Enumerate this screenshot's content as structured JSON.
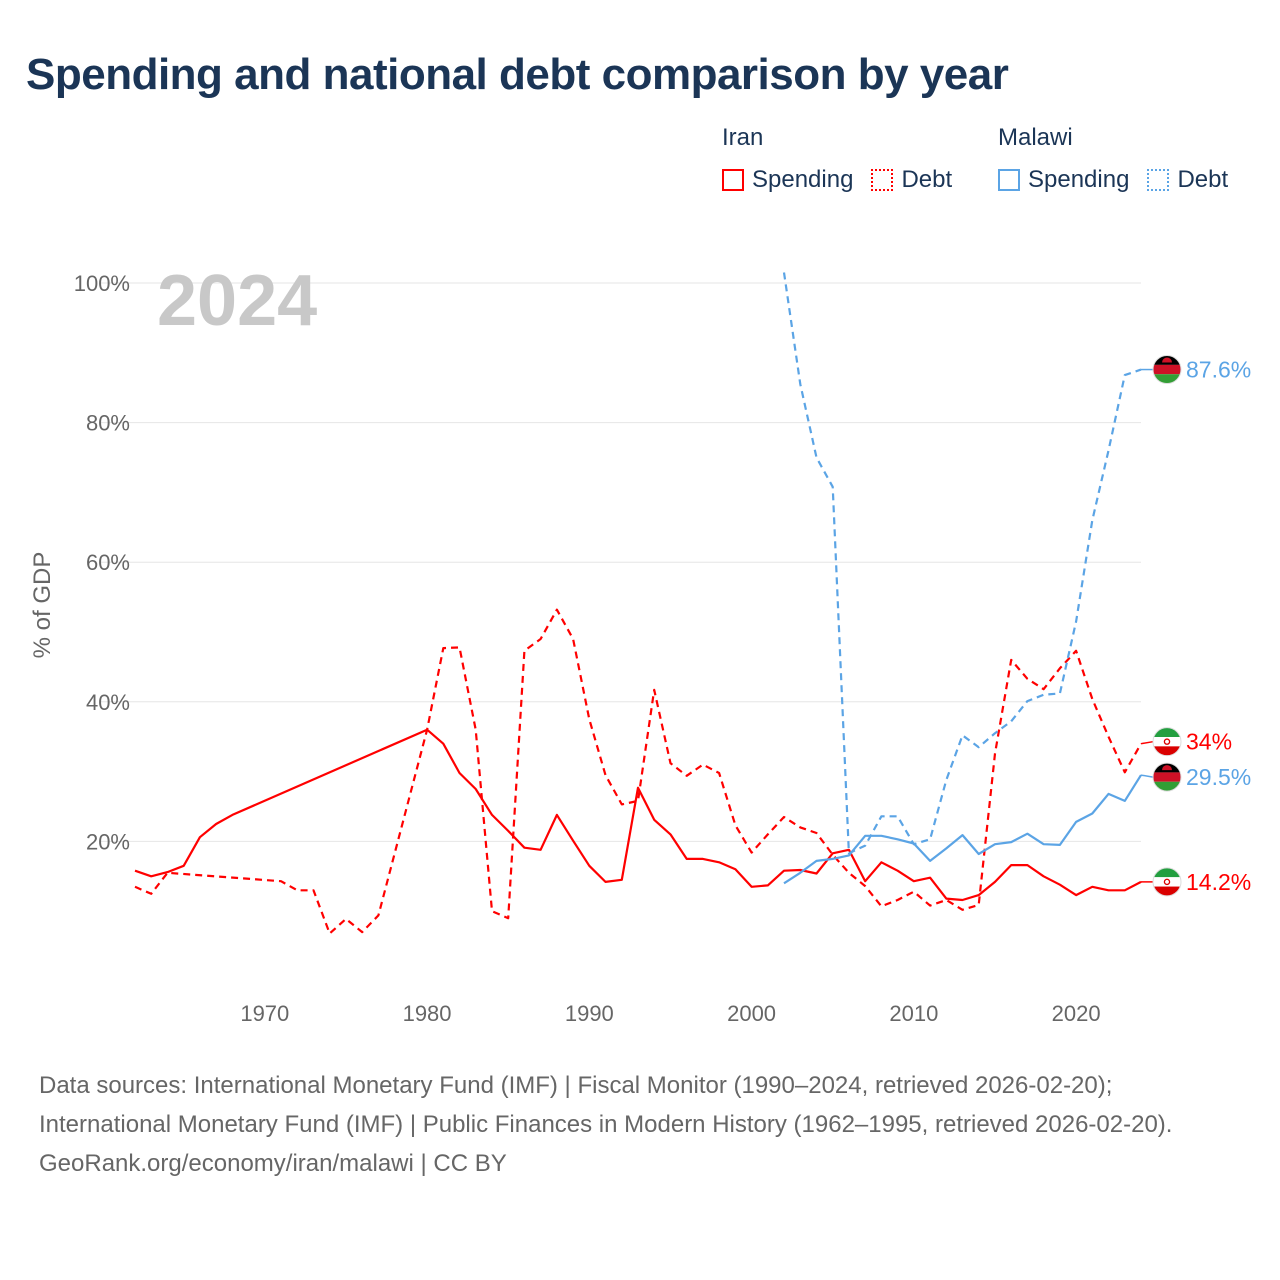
{
  "title": "Spending and national debt comparison by year",
  "colors": {
    "iran": "#ff0000",
    "malawi": "#5ba4e5",
    "title": "#1b3556",
    "grid": "#e6e6e6",
    "year_watermark": "#c8c8c8",
    "axis_text": "#666666"
  },
  "legend": [
    {
      "country": "Iran",
      "items": [
        {
          "label": "Spending",
          "style": "solid"
        },
        {
          "label": "Debt",
          "style": "dotted"
        }
      ]
    },
    {
      "country": "Malawi",
      "items": [
        {
          "label": "Spending",
          "style": "solid"
        },
        {
          "label": "Debt",
          "style": "dotted"
        }
      ]
    }
  ],
  "chart_data": {
    "type": "line",
    "ylabel": "% of GDP",
    "xlim": [
      1962,
      2024
    ],
    "ylim": [
      0,
      100
    ],
    "y_ticks": [
      20,
      40,
      60,
      80,
      100
    ],
    "y_tick_labels": [
      "20%",
      "40%",
      "60%",
      "80%",
      "100%"
    ],
    "x_ticks": [
      1970,
      1980,
      1990,
      2000,
      2010,
      2020
    ],
    "x_tick_labels": [
      "1970",
      "1980",
      "1990",
      "2000",
      "2010",
      "2020"
    ],
    "year_label": "2024",
    "series": [
      {
        "name": "Iran Spending",
        "country": "Iran",
        "measure": "Spending",
        "dash": "solid",
        "color": "#ff0000",
        "end_label": "14.2%",
        "x": [
          1962,
          1963,
          1964,
          1965,
          1966,
          1967,
          1968,
          1980,
          1981,
          1982,
          1983,
          1984,
          1985,
          1986,
          1987,
          1988,
          1989,
          1990,
          1991,
          1992,
          1993,
          1994,
          1995,
          1996,
          1997,
          1998,
          1999,
          2000,
          2001,
          2002,
          2003,
          2004,
          2005,
          2006,
          2007,
          2008,
          2009,
          2010,
          2011,
          2012,
          2013,
          2014,
          2015,
          2016,
          2017,
          2018,
          2019,
          2020,
          2021,
          2022,
          2023,
          2024
        ],
        "y": [
          15.8,
          15.0,
          15.6,
          16.5,
          20.6,
          22.5,
          23.8,
          36.0,
          34.0,
          29.8,
          27.5,
          23.8,
          21.5,
          19.1,
          18.8,
          23.8,
          20.1,
          16.5,
          14.2,
          14.5,
          27.7,
          23.1,
          21.0,
          17.5,
          17.5,
          17.0,
          16.0,
          13.5,
          13.7,
          15.8,
          15.9,
          15.4,
          18.3,
          18.8,
          14.3,
          17.0,
          15.8,
          14.3,
          14.8,
          11.8,
          11.6,
          12.3,
          14.2,
          16.6,
          16.6,
          15.0,
          13.8,
          12.3,
          13.5,
          13.0,
          13.0,
          14.2
        ]
      },
      {
        "name": "Iran Debt",
        "country": "Iran",
        "measure": "Debt",
        "dash": "dashed",
        "color": "#ff0000",
        "end_label": "34%",
        "x": [
          1962,
          1963,
          1964,
          1971,
          1972,
          1973,
          1974,
          1975,
          1976,
          1977,
          1980,
          1981,
          1982,
          1983,
          1984,
          1985,
          1986,
          1987,
          1988,
          1989,
          1990,
          1991,
          1992,
          1993,
          1994,
          1995,
          1996,
          1997,
          1998,
          1999,
          2000,
          2001,
          2002,
          2003,
          2004,
          2005,
          2006,
          2007,
          2008,
          2009,
          2010,
          2011,
          2012,
          2013,
          2014,
          2015,
          2016,
          2017,
          2018,
          2019,
          2020,
          2021,
          2022,
          2023,
          2024
        ],
        "y": [
          13.5,
          12.5,
          15.5,
          14.3,
          13.0,
          13.0,
          6.8,
          8.9,
          7.0,
          9.4,
          36.0,
          47.7,
          47.8,
          36.0,
          10.0,
          9.0,
          47.3,
          49.0,
          53.2,
          49.0,
          37.5,
          29.5,
          25.3,
          25.8,
          41.7,
          31.2,
          29.4,
          31.0,
          29.8,
          22.3,
          18.4,
          21.0,
          23.5,
          22.0,
          21.2,
          18.1,
          15.5,
          13.6,
          10.7,
          11.6,
          12.8,
          10.8,
          11.6,
          10.2,
          10.9,
          32.6,
          46.0,
          43.3,
          41.8,
          44.8,
          47.3,
          40.4,
          35.0,
          29.9,
          34.0
        ]
      },
      {
        "name": "Malawi Spending",
        "country": "Malawi",
        "measure": "Spending",
        "dash": "solid",
        "color": "#5ba4e5",
        "end_label": "29.5%",
        "x": [
          2002,
          2003,
          2004,
          2005,
          2006,
          2007,
          2008,
          2009,
          2010,
          2011,
          2012,
          2013,
          2014,
          2015,
          2016,
          2017,
          2018,
          2019,
          2020,
          2021,
          2022,
          2023,
          2024
        ],
        "y": [
          14.0,
          15.5,
          17.2,
          17.5,
          18.0,
          20.8,
          20.8,
          20.3,
          19.7,
          17.2,
          19.0,
          20.9,
          18.2,
          19.6,
          19.9,
          21.1,
          19.6,
          19.5,
          22.8,
          24.0,
          26.8,
          25.8,
          29.5
        ]
      },
      {
        "name": "Malawi Debt",
        "country": "Malawi",
        "measure": "Debt",
        "dash": "dashed",
        "color": "#5ba4e5",
        "end_label": "87.6%",
        "x": [
          2002,
          2003,
          2004,
          2005,
          2006,
          2007,
          2008,
          2009,
          2010,
          2011,
          2012,
          2013,
          2014,
          2015,
          2016,
          2017,
          2018,
          2019,
          2020,
          2021,
          2022,
          2023,
          2024
        ],
        "y": [
          101.5,
          85.5,
          75.0,
          70.8,
          18.3,
          19.4,
          23.6,
          23.6,
          19.6,
          20.3,
          28.8,
          35.2,
          33.5,
          35.5,
          37.2,
          40.1,
          41.0,
          41.2,
          51.5,
          66.0,
          76.0,
          86.8,
          87.6
        ]
      }
    ]
  },
  "footer": {
    "sources": "Data sources: International Monetary Fund (IMF) | Fiscal Monitor (1990–2024, retrieved 2026-02-20); International Monetary Fund (IMF) | Public Finances in Modern History (1962–1995, retrieved 2026-02-20).",
    "credit": "GeoRank.org/economy/iran/malawi | CC BY"
  }
}
